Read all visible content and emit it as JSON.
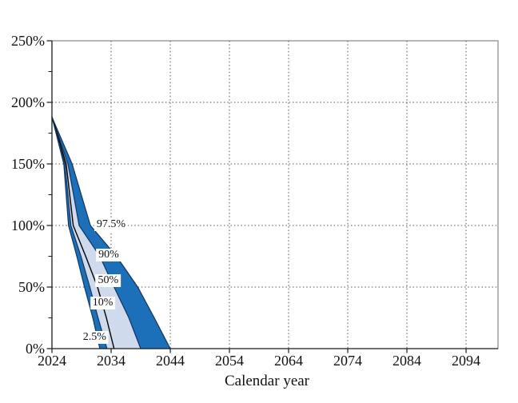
{
  "chart_data": {
    "type": "area",
    "subtype": "percentile-fan-chart",
    "title": "",
    "xlabel": "Calendar year",
    "ylabel": "",
    "x_axis": {
      "range": [
        2024,
        2099.4
      ],
      "major_ticks": [
        2024,
        2034,
        2044,
        2054,
        2064,
        2074,
        2084,
        2094
      ],
      "gridlines": "dotted-vertical"
    },
    "y_axis": {
      "range": [
        0,
        250
      ],
      "major_tick_values": [
        0,
        50,
        100,
        150,
        200,
        250
      ],
      "major_tick_labels": [
        "0%",
        "50%",
        "100%",
        "150%",
        "200%",
        "250%"
      ],
      "minor_tick_values": [
        25,
        75,
        125,
        175,
        225
      ],
      "gridlines": "dotted-horizontal"
    },
    "start_point": {
      "year": 2024,
      "value_pct": 188
    },
    "value_levels_pct": [
      188,
      150,
      100,
      75,
      50,
      25,
      0
    ],
    "series": [
      {
        "name": "97.5%",
        "years_at_levels": [
          2024,
          2027.4,
          2030.5,
          2034.9,
          2038.5,
          2041.3,
          2044.0
        ]
      },
      {
        "name": "90%",
        "years_at_levels": [
          2024,
          2026.7,
          2028.6,
          2032.1,
          2034.5,
          2037.0,
          2039.0
        ]
      },
      {
        "name": "50%",
        "years_at_levels": [
          2024,
          2026.4,
          2027.6,
          2029.7,
          2031.7,
          2033.2,
          2034.5
        ]
      },
      {
        "name": "10%",
        "years_at_levels": [
          2024,
          2026.2,
          2027.2,
          2028.9,
          2030.4,
          2031.8,
          2033.3
        ]
      },
      {
        "name": "2.5%",
        "years_at_levels": [
          2024,
          2026.0,
          2026.8,
          2028.2,
          2029.5,
          2030.9,
          2032.1
        ]
      }
    ],
    "bands": [
      {
        "lower": "2.5%",
        "upper": "10%",
        "fill": "dark"
      },
      {
        "lower": "10%",
        "upper": "90%",
        "fill": "light"
      },
      {
        "lower": "90%",
        "upper": "97.5%",
        "fill": "dark"
      }
    ],
    "percentile_labels": [
      {
        "text": "97.5%",
        "year": 2034.0,
        "value_pct": 101
      },
      {
        "text": "90%",
        "year": 2033.6,
        "value_pct": 76
      },
      {
        "text": "50%",
        "year": 2033.5,
        "value_pct": 55.5
      },
      {
        "text": "10%",
        "year": 2032.6,
        "value_pct": 37
      },
      {
        "text": "2.5%",
        "year": 2031.2,
        "value_pct": 9.4
      }
    ],
    "colors": {
      "dark_band": "#1c6fb9",
      "light_band": "#cfdaed",
      "band_edge": "#14365e",
      "median_line": "#000000",
      "grid": "#555555",
      "frame": "#6e6e6e",
      "axis": "#1a1a1a",
      "text": "#111111",
      "background": "#ffffff"
    }
  }
}
